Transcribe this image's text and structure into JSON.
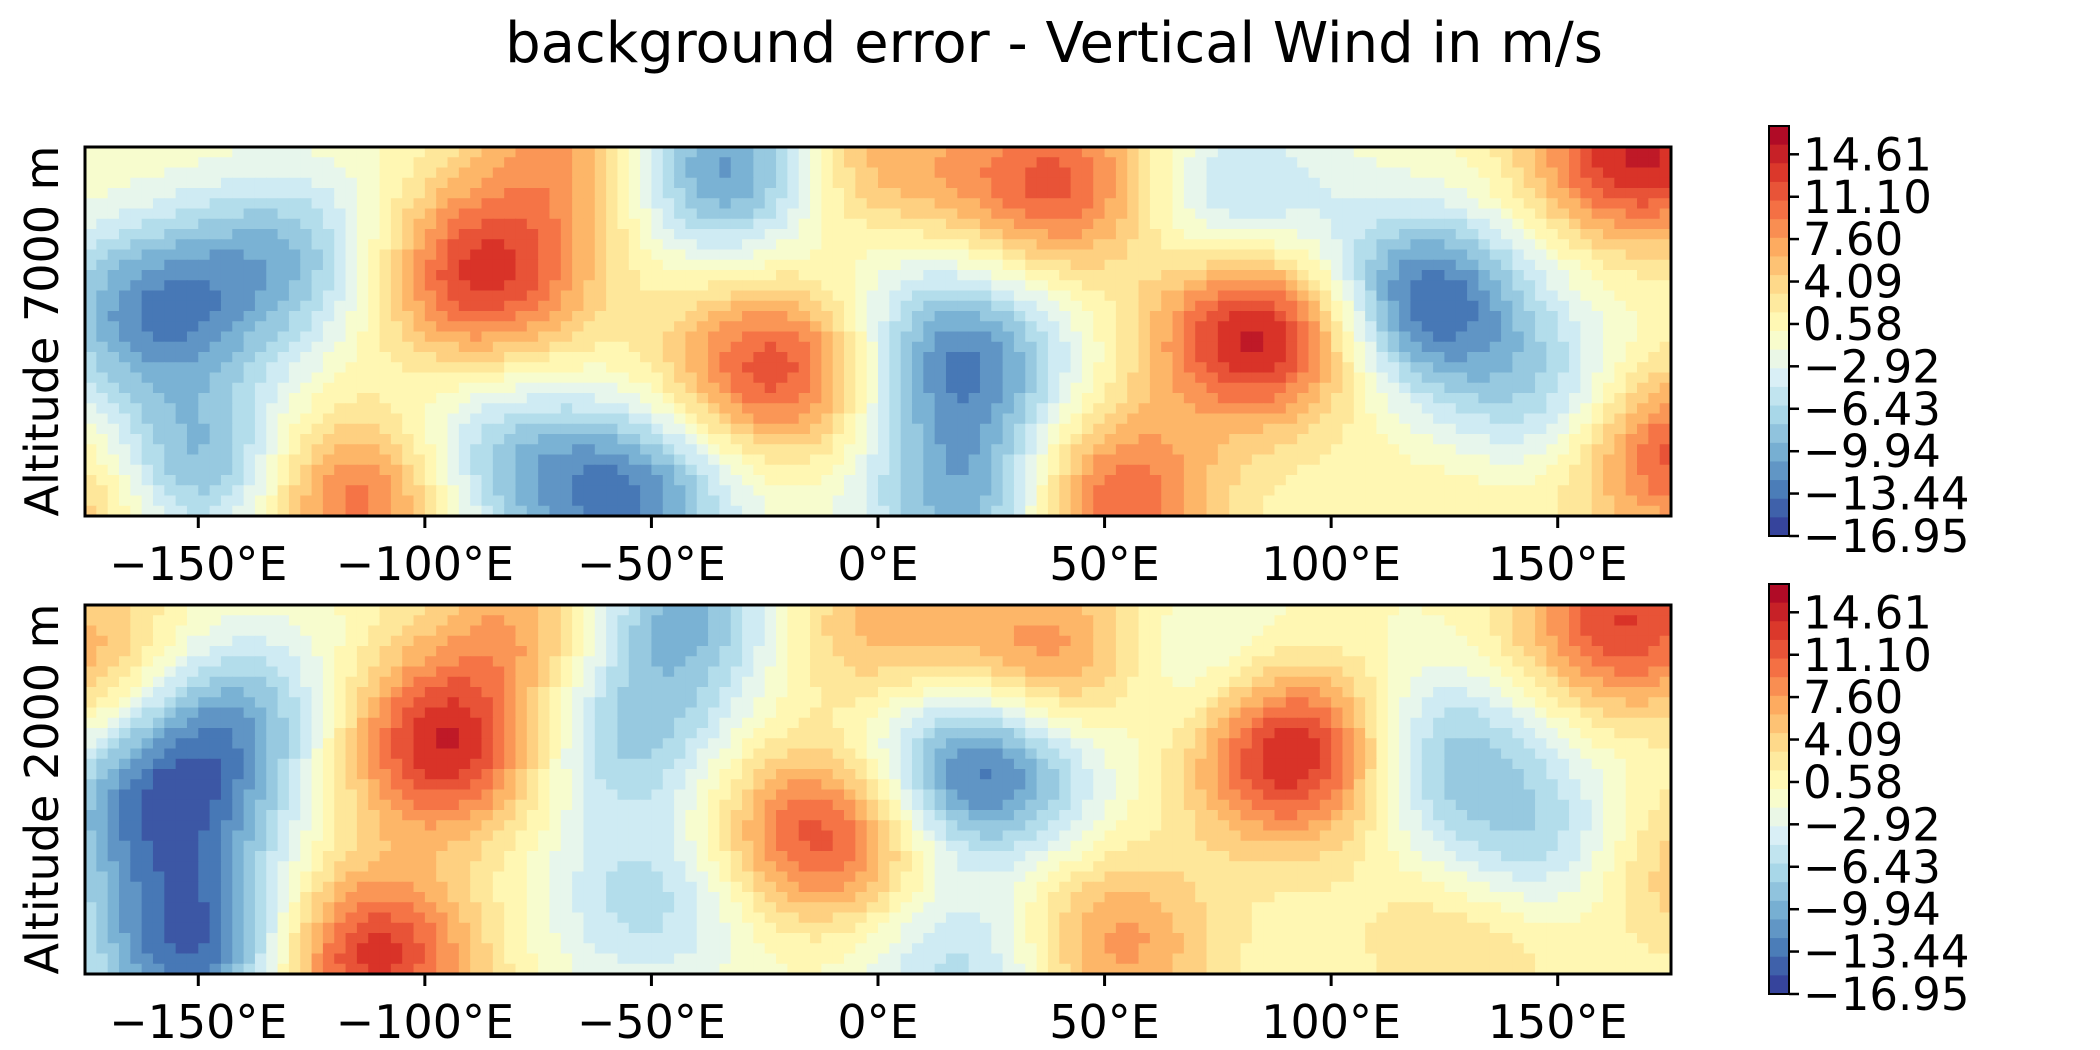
{
  "title": "background error - Vertical Wind in m/s",
  "colors": {
    "scale": [
      "#313695",
      "#4575b4",
      "#74add1",
      "#abd9e9",
      "#e0f3f8",
      "#ffffbf",
      "#fee090",
      "#fdae61",
      "#f46d43",
      "#d73027",
      "#a50026"
    ]
  },
  "chart_data": [
    {
      "type": "heatmap",
      "ylabel": "Altitude 7000 m",
      "xlim": [
        -175,
        175
      ],
      "x_ticks": [
        "−150°E",
        "−100°E",
        "−50°E",
        "0°E",
        "50°E",
        "100°E",
        "150°E"
      ],
      "x_tick_values": [
        -150,
        -100,
        -50,
        0,
        50,
        100,
        150
      ],
      "colorbar": {
        "min": -16.95,
        "max": 16.95,
        "tick_labels": [
          "14.61",
          "11.10",
          "7.60",
          "4.09",
          "0.58",
          "−2.92",
          "−6.43",
          "−9.94",
          "−13.44",
          "−16.95"
        ],
        "tick_values": [
          14.61,
          11.1,
          7.6,
          4.09,
          0.58,
          -2.92,
          -6.43,
          -9.94,
          -13.44,
          -16.95
        ]
      },
      "features": [
        {
          "lon": -160,
          "v": 0.55,
          "value": -11.0
        },
        {
          "lon": -152,
          "v": 0.12,
          "value": -12.0
        },
        {
          "lon": -130,
          "v": 0.7,
          "value": -8.0
        },
        {
          "lon": -88,
          "v": 0.65,
          "value": 12.5
        },
        {
          "lon": -115,
          "v": 0.05,
          "value": 11.0
        },
        {
          "lon": -35,
          "v": 0.95,
          "value": -13.0
        },
        {
          "lon": -55,
          "v": 0.05,
          "value": -11.5
        },
        {
          "lon": -85,
          "v": 0.15,
          "value": -7.0
        },
        {
          "lon": -22,
          "v": 0.4,
          "value": 12.0
        },
        {
          "lon": 18,
          "v": 0.42,
          "value": -12.0
        },
        {
          "lon": 22,
          "v": 0.05,
          "value": -11.0
        },
        {
          "lon": 50,
          "v": 0.05,
          "value": 12.0
        },
        {
          "lon": 40,
          "v": 0.9,
          "value": 11.0
        },
        {
          "lon": 85,
          "v": 0.5,
          "value": 15.5
        },
        {
          "lon": 120,
          "v": 0.58,
          "value": -14.0
        },
        {
          "lon": 78,
          "v": 0.85,
          "value": -6.5
        },
        {
          "lon": 148,
          "v": 0.3,
          "value": -7.0
        },
        {
          "lon": 168,
          "v": 0.98,
          "value": 14.0
        },
        {
          "lon": 175,
          "v": 0.18,
          "value": 12.0
        },
        {
          "lon": -172,
          "v": 0.05,
          "value": 8.0
        },
        {
          "lon": 2,
          "v": 0.7,
          "value": -2.0
        },
        {
          "lon": 130,
          "v": 0.05,
          "value": 2.0
        },
        {
          "lon": -65,
          "v": 0.98,
          "value": 8.0
        },
        {
          "lon": -2,
          "v": 0.95,
          "value": 7.0
        }
      ]
    },
    {
      "type": "heatmap",
      "ylabel": "Altitude 2000 m",
      "xlim": [
        -175,
        175
      ],
      "x_ticks": [
        "−150°E",
        "−100°E",
        "−50°E",
        "0°E",
        "50°E",
        "100°E",
        "150°E"
      ],
      "x_tick_values": [
        -150,
        -100,
        -50,
        0,
        50,
        100,
        150
      ],
      "colorbar": {
        "min": -16.95,
        "max": 16.95,
        "tick_labels": [
          "14.61",
          "11.10",
          "7.60",
          "4.09",
          "0.58",
          "−2.92",
          "−6.43",
          "−9.94",
          "−13.44",
          "−16.95"
        ],
        "tick_values": [
          14.61,
          11.1,
          7.6,
          4.09,
          0.58,
          -2.92,
          -6.43,
          -9.94,
          -13.44,
          -16.95
        ]
      },
      "features": [
        {
          "lon": -158,
          "v": 0.45,
          "value": -12.0
        },
        {
          "lon": -150,
          "v": 0.08,
          "value": -14.0
        },
        {
          "lon": -143,
          "v": 0.7,
          "value": -9.0
        },
        {
          "lon": -95,
          "v": 0.62,
          "value": 14.0
        },
        {
          "lon": -113,
          "v": 0.05,
          "value": 13.5
        },
        {
          "lon": -58,
          "v": 0.65,
          "value": -8.0
        },
        {
          "lon": -45,
          "v": 0.98,
          "value": -10.0
        },
        {
          "lon": -50,
          "v": 0.2,
          "value": -6.0
        },
        {
          "lon": -12,
          "v": 0.38,
          "value": 12.0
        },
        {
          "lon": 22,
          "v": 0.55,
          "value": -14.0
        },
        {
          "lon": 22,
          "v": 0.02,
          "value": -7.0
        },
        {
          "lon": 50,
          "v": 0.08,
          "value": 8.5
        },
        {
          "lon": 40,
          "v": 0.85,
          "value": 9.0
        },
        {
          "lon": 93,
          "v": 0.6,
          "value": 16.0
        },
        {
          "lon": 122,
          "v": 0.6,
          "value": -9.0
        },
        {
          "lon": 68,
          "v": 0.8,
          "value": -5.0
        },
        {
          "lon": 148,
          "v": 0.35,
          "value": -7.0
        },
        {
          "lon": 165,
          "v": 0.95,
          "value": 12.0
        },
        {
          "lon": 175,
          "v": 0.3,
          "value": 6.0
        },
        {
          "lon": -175,
          "v": 0.85,
          "value": 7.0
        },
        {
          "lon": -75,
          "v": 0.95,
          "value": 7.5
        },
        {
          "lon": 0,
          "v": 0.95,
          "value": 6.0
        },
        {
          "lon": 130,
          "v": 0.1,
          "value": 4.0
        }
      ]
    }
  ]
}
